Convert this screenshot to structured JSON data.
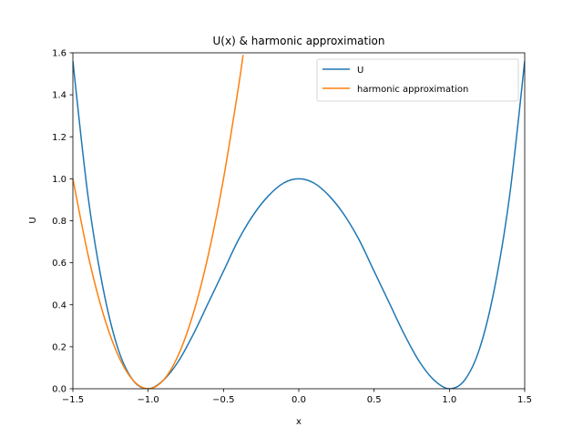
{
  "chart_data": {
    "type": "line",
    "title": "U(x) & harmonic approximation",
    "xlabel": "x",
    "ylabel": "U",
    "xlim": [
      -1.5,
      1.5
    ],
    "ylim": [
      0.0,
      1.6
    ],
    "xticks": [
      -1.5,
      -1.0,
      -0.5,
      0.0,
      0.5,
      1.0,
      1.5
    ],
    "xtick_labels": [
      "−1.5",
      "−1.0",
      "−0.5",
      "0.0",
      "0.5",
      "1.0",
      "1.5"
    ],
    "yticks": [
      0.0,
      0.2,
      0.4,
      0.6,
      0.8,
      1.0,
      1.2,
      1.4,
      1.6
    ],
    "ytick_labels": [
      "0.0",
      "0.2",
      "0.4",
      "0.6",
      "0.8",
      "1.0",
      "1.2",
      "1.4",
      "1.6"
    ],
    "grid": false,
    "legend_position": "top-right",
    "series": [
      {
        "name": "U",
        "color": "#1f77b4",
        "x": [
          -1.5,
          -1.4,
          -1.3,
          -1.2,
          -1.1,
          -1.0,
          -0.9,
          -0.8,
          -0.7,
          -0.6,
          -0.5,
          -0.4,
          -0.3,
          -0.2,
          -0.1,
          0.0,
          0.1,
          0.2,
          0.3,
          0.4,
          0.5,
          0.6,
          0.7,
          0.8,
          0.9,
          1.0,
          1.1,
          1.2,
          1.3,
          1.4,
          1.5
        ],
        "y": [
          1.56,
          0.92,
          0.48,
          0.19,
          0.04,
          0.0,
          0.04,
          0.13,
          0.26,
          0.41,
          0.56,
          0.71,
          0.83,
          0.92,
          0.98,
          1.0,
          0.98,
          0.92,
          0.83,
          0.71,
          0.56,
          0.41,
          0.26,
          0.13,
          0.04,
          0.0,
          0.04,
          0.19,
          0.48,
          0.92,
          1.56
        ]
      },
      {
        "name": "harmonic approximation",
        "color": "#ff7f0e",
        "x": [
          -1.5,
          -1.4,
          -1.3,
          -1.2,
          -1.1,
          -1.0,
          -0.9,
          -0.8,
          -0.7,
          -0.6,
          -0.5,
          -0.4,
          -0.37
        ],
        "y": [
          1.0,
          0.64,
          0.36,
          0.16,
          0.04,
          0.0,
          0.04,
          0.16,
          0.36,
          0.64,
          1.0,
          1.44,
          1.59
        ]
      }
    ]
  }
}
